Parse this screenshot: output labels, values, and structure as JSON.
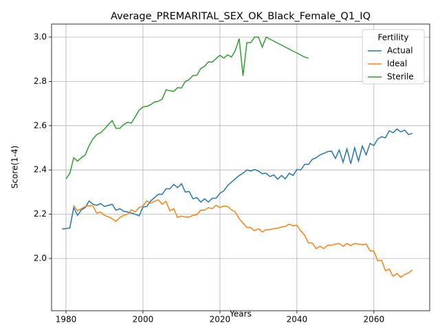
{
  "chart_data": {
    "type": "line",
    "title": "Average_PREMARITAL_SEX_OK_Black_Female_Q1_IQ",
    "x_label": "Years",
    "y_label": "Score(1-4)",
    "legend_title": "Fertility",
    "legend_position": "upper right",
    "grid": true,
    "xlim": [
      1976.25,
      2074.5
    ],
    "xticks": [
      1980,
      2000,
      2020,
      2040,
      2060
    ],
    "ylim": [
      1.764,
      3.059
    ],
    "yticks": [
      {
        "value": 2.0,
        "label": "2.0"
      },
      {
        "value": 2.2,
        "label": "2.2"
      },
      {
        "value": 2.4,
        "label": "2.4"
      },
      {
        "value": 2.6,
        "label": "2.6"
      },
      {
        "value": 2.8,
        "label": "2.8"
      },
      {
        "value": 3.0,
        "label": "3.0"
      }
    ],
    "series": [
      {
        "name": "Actual",
        "color": "#1f77b4",
        "x": [
          1979,
          1980,
          1981,
          1982,
          1983,
          1984,
          1985,
          1986,
          1987,
          1988,
          1989,
          1990,
          1991,
          1992,
          1993,
          1994,
          1995,
          1996,
          1997,
          1998,
          1999,
          2000,
          2001,
          2002,
          2003,
          2004,
          2005,
          2006,
          2007,
          2008,
          2009,
          2010,
          2011,
          2012,
          2013,
          2014,
          2015,
          2016,
          2017,
          2018,
          2019,
          2020,
          2021,
          2022,
          2023,
          2024,
          2025,
          2026,
          2027,
          2028,
          2029,
          2030,
          2031,
          2032,
          2033,
          2034,
          2035,
          2036,
          2037,
          2038,
          2039,
          2040,
          2041,
          2042,
          2043,
          2044,
          2045,
          2046,
          2047,
          2048,
          2049,
          2050,
          2051,
          2052,
          2053,
          2054,
          2055,
          2056,
          2057,
          2058,
          2059,
          2060,
          2061,
          2062,
          2063,
          2064,
          2065,
          2066,
          2067,
          2068,
          2069,
          2070
        ],
        "values": [
          2.133,
          2.135,
          2.138,
          2.23,
          2.195,
          2.22,
          2.23,
          2.26,
          2.245,
          2.24,
          2.248,
          2.235,
          2.24,
          2.245,
          2.218,
          2.225,
          2.213,
          2.21,
          2.205,
          2.2,
          2.193,
          2.232,
          2.235,
          2.26,
          2.275,
          2.29,
          2.29,
          2.315,
          2.315,
          2.335,
          2.32,
          2.338,
          2.3,
          2.303,
          2.27,
          2.275,
          2.255,
          2.27,
          2.255,
          2.272,
          2.272,
          2.295,
          2.305,
          2.33,
          2.345,
          2.36,
          2.375,
          2.385,
          2.4,
          2.395,
          2.402,
          2.395,
          2.383,
          2.385,
          2.37,
          2.378,
          2.358,
          2.375,
          2.36,
          2.385,
          2.375,
          2.402,
          2.4,
          2.425,
          2.425,
          2.448,
          2.455,
          2.468,
          2.475,
          2.483,
          2.485,
          2.452,
          2.49,
          2.435,
          2.495,
          2.428,
          2.5,
          2.44,
          2.508,
          2.468,
          2.52,
          2.51,
          2.54,
          2.55,
          2.545,
          2.577,
          2.568,
          2.585,
          2.572,
          2.58,
          2.56,
          2.565
        ]
      },
      {
        "name": "Ideal",
        "color": "#ff7f0e",
        "x": [
          1982,
          1983,
          1984,
          1985,
          1986,
          1987,
          1988,
          1989,
          1990,
          1991,
          1992,
          1993,
          1994,
          1995,
          1996,
          1997,
          1998,
          1999,
          2000,
          2001,
          2002,
          2003,
          2004,
          2005,
          2006,
          2007,
          2008,
          2009,
          2010,
          2011,
          2012,
          2013,
          2014,
          2015,
          2016,
          2017,
          2018,
          2019,
          2020,
          2021,
          2022,
          2023,
          2024,
          2025,
          2026,
          2027,
          2028,
          2029,
          2030,
          2031,
          2032,
          2033,
          2034,
          2035,
          2036,
          2037,
          2038,
          2039,
          2040,
          2041,
          2042,
          2043,
          2044,
          2045,
          2046,
          2047,
          2048,
          2049,
          2050,
          2051,
          2052,
          2053,
          2054,
          2055,
          2056,
          2057,
          2058,
          2059,
          2060,
          2061,
          2062,
          2063,
          2064,
          2065,
          2066,
          2067,
          2068,
          2069,
          2070
        ],
        "values": [
          2.24,
          2.215,
          2.225,
          2.235,
          2.238,
          2.238,
          2.205,
          2.21,
          2.195,
          2.188,
          2.18,
          2.168,
          2.185,
          2.195,
          2.2,
          2.22,
          2.21,
          2.23,
          2.237,
          2.26,
          2.25,
          2.258,
          2.265,
          2.245,
          2.258,
          2.215,
          2.225,
          2.185,
          2.192,
          2.187,
          2.187,
          2.195,
          2.198,
          2.218,
          2.218,
          2.23,
          2.225,
          2.24,
          2.23,
          2.237,
          2.235,
          2.22,
          2.21,
          2.18,
          2.16,
          2.14,
          2.14,
          2.125,
          2.135,
          2.12,
          2.13,
          2.13,
          2.135,
          2.137,
          2.142,
          2.145,
          2.155,
          2.148,
          2.15,
          2.125,
          2.105,
          2.07,
          2.07,
          2.045,
          2.055,
          2.045,
          2.06,
          2.06,
          2.065,
          2.068,
          2.055,
          2.068,
          2.058,
          2.068,
          2.065,
          2.062,
          2.065,
          2.035,
          2.033,
          1.99,
          1.992,
          1.945,
          1.952,
          1.92,
          1.932,
          1.915,
          1.928,
          1.935,
          1.948
        ]
      },
      {
        "name": "Sterile",
        "color": "#2ca02c",
        "x": [
          1980,
          1981,
          1982,
          1983,
          1984,
          1985,
          1986,
          1987,
          1988,
          1989,
          1990,
          1991,
          1992,
          1993,
          1994,
          1995,
          1996,
          1997,
          1998,
          1999,
          2000,
          2001,
          2002,
          2003,
          2004,
          2005,
          2006,
          2007,
          2008,
          2009,
          2010,
          2011,
          2012,
          2013,
          2014,
          2015,
          2016,
          2017,
          2018,
          2019,
          2020,
          2021,
          2022,
          2023,
          2024,
          2025,
          2026,
          2027,
          2028,
          2029,
          2030,
          2031,
          2032,
          2042,
          2043
        ],
        "values": [
          2.36,
          2.385,
          2.455,
          2.44,
          2.455,
          2.468,
          2.51,
          2.54,
          2.56,
          2.568,
          2.585,
          2.605,
          2.623,
          2.588,
          2.588,
          2.605,
          2.615,
          2.612,
          2.64,
          2.67,
          2.685,
          2.687,
          2.695,
          2.707,
          2.71,
          2.72,
          2.762,
          2.758,
          2.755,
          2.772,
          2.77,
          2.8,
          2.808,
          2.827,
          2.828,
          2.858,
          2.868,
          2.888,
          2.887,
          2.903,
          2.918,
          2.905,
          2.92,
          2.91,
          2.94,
          2.993,
          2.825,
          2.975,
          2.975,
          3.0,
          3.0,
          2.955,
          3.0,
          2.91,
          2.905
        ]
      }
    ]
  }
}
